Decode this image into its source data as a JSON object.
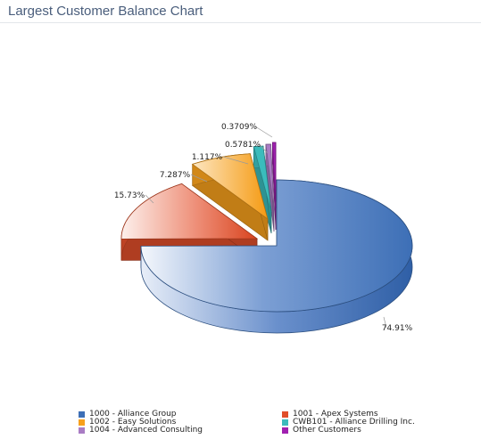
{
  "header": {
    "title": "Largest Customer Balance Chart"
  },
  "chart_data": {
    "type": "pie",
    "title": "Largest Customer Balance Chart",
    "categories": [
      "1000 - Alliance Group",
      "1001 - Apex Systems",
      "1002 - Easy Solutions",
      "CWB101 - Alliance Drilling Inc.",
      "1004 - Advanced Consulting",
      "Other Customers"
    ],
    "values": [
      74.91,
      15.73,
      7.287,
      1.117,
      0.5781,
      0.3709
    ],
    "labels": [
      "74.91%",
      "15.73%",
      "7.287%",
      "1.117%",
      "0.5781%",
      "0.3709%"
    ],
    "colors": [
      "#3d6fb6",
      "#e04e2a",
      "#f7a01c",
      "#3bbcbc",
      "#a97cc4",
      "#a020b0"
    ],
    "legend_position": "bottom",
    "style": "3d exploded"
  }
}
